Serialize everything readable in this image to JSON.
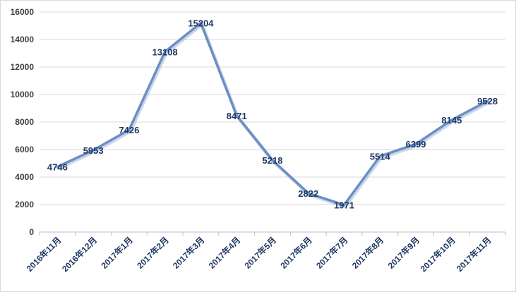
{
  "chart_data": {
    "type": "line",
    "title": "",
    "xlabel": "",
    "ylabel": "",
    "categories": [
      "2016年11月",
      "2016年12月",
      "2017年1月",
      "2017年2月",
      "2017年3月",
      "2017年4月",
      "2017年5月",
      "2017年6月",
      "2017年7月",
      "2017年8月",
      "2017年9月",
      "2017年10月",
      "2017年11月"
    ],
    "values": [
      4746,
      5953,
      7426,
      13108,
      15204,
      8471,
      5218,
      2822,
      1971,
      5514,
      6399,
      8145,
      9528
    ],
    "ylim": [
      0,
      16000
    ],
    "yticks": [
      "0",
      "2000",
      "4000",
      "6000",
      "8000",
      "10000",
      "12000",
      "14000",
      "16000"
    ],
    "grid": true,
    "legend": "none",
    "colors": {
      "line": "#6b8fc4",
      "line_shadow": "#9ab0d3",
      "grid": "#d9d9d9",
      "label": "#1f3864"
    }
  }
}
